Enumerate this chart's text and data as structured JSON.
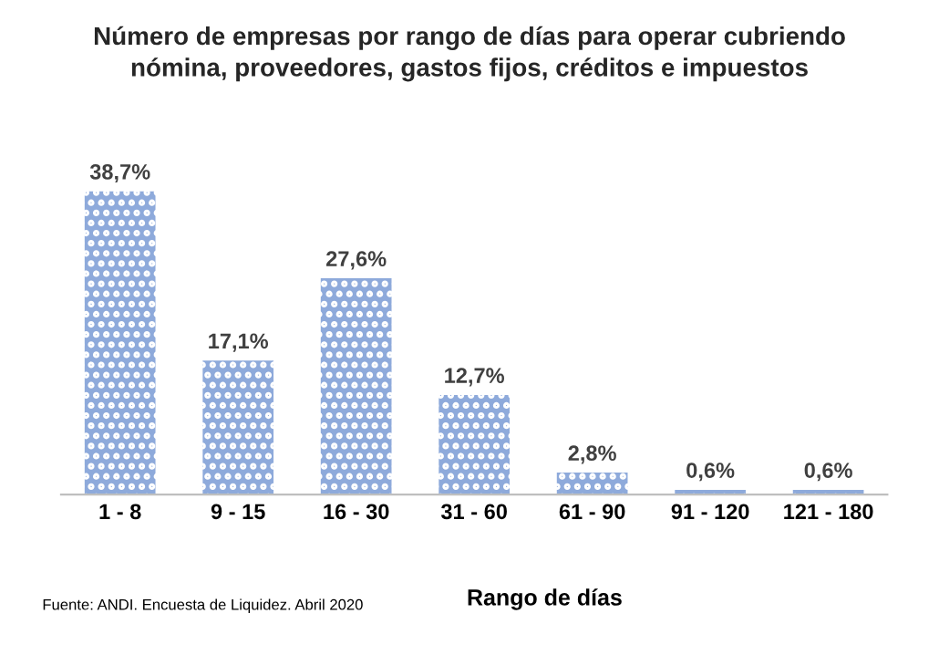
{
  "chart_data": {
    "type": "bar",
    "title": "Número de empresas por rango de días para operar cubriendo\nnómina, proveedores, gastos fijos, créditos e impuestos",
    "categories": [
      "1 - 8",
      "9 - 15",
      "16 - 30",
      "31 - 60",
      "61 - 90",
      "91 - 120",
      "121 - 180"
    ],
    "values": [
      38.7,
      17.1,
      27.6,
      12.7,
      2.8,
      0.6,
      0.6
    ],
    "value_labels": [
      "38,7%",
      "17,1%",
      "27,6%",
      "12,7%",
      "2,8%",
      "0,6%",
      "0,6%"
    ],
    "color": "#8eaadb",
    "xlabel": "Rango de días",
    "grid": false,
    "tick_labels": "x",
    "annotations": [
      "Fuente: ANDI. Encuesta de Liquidez. Abril 2020"
    ]
  }
}
